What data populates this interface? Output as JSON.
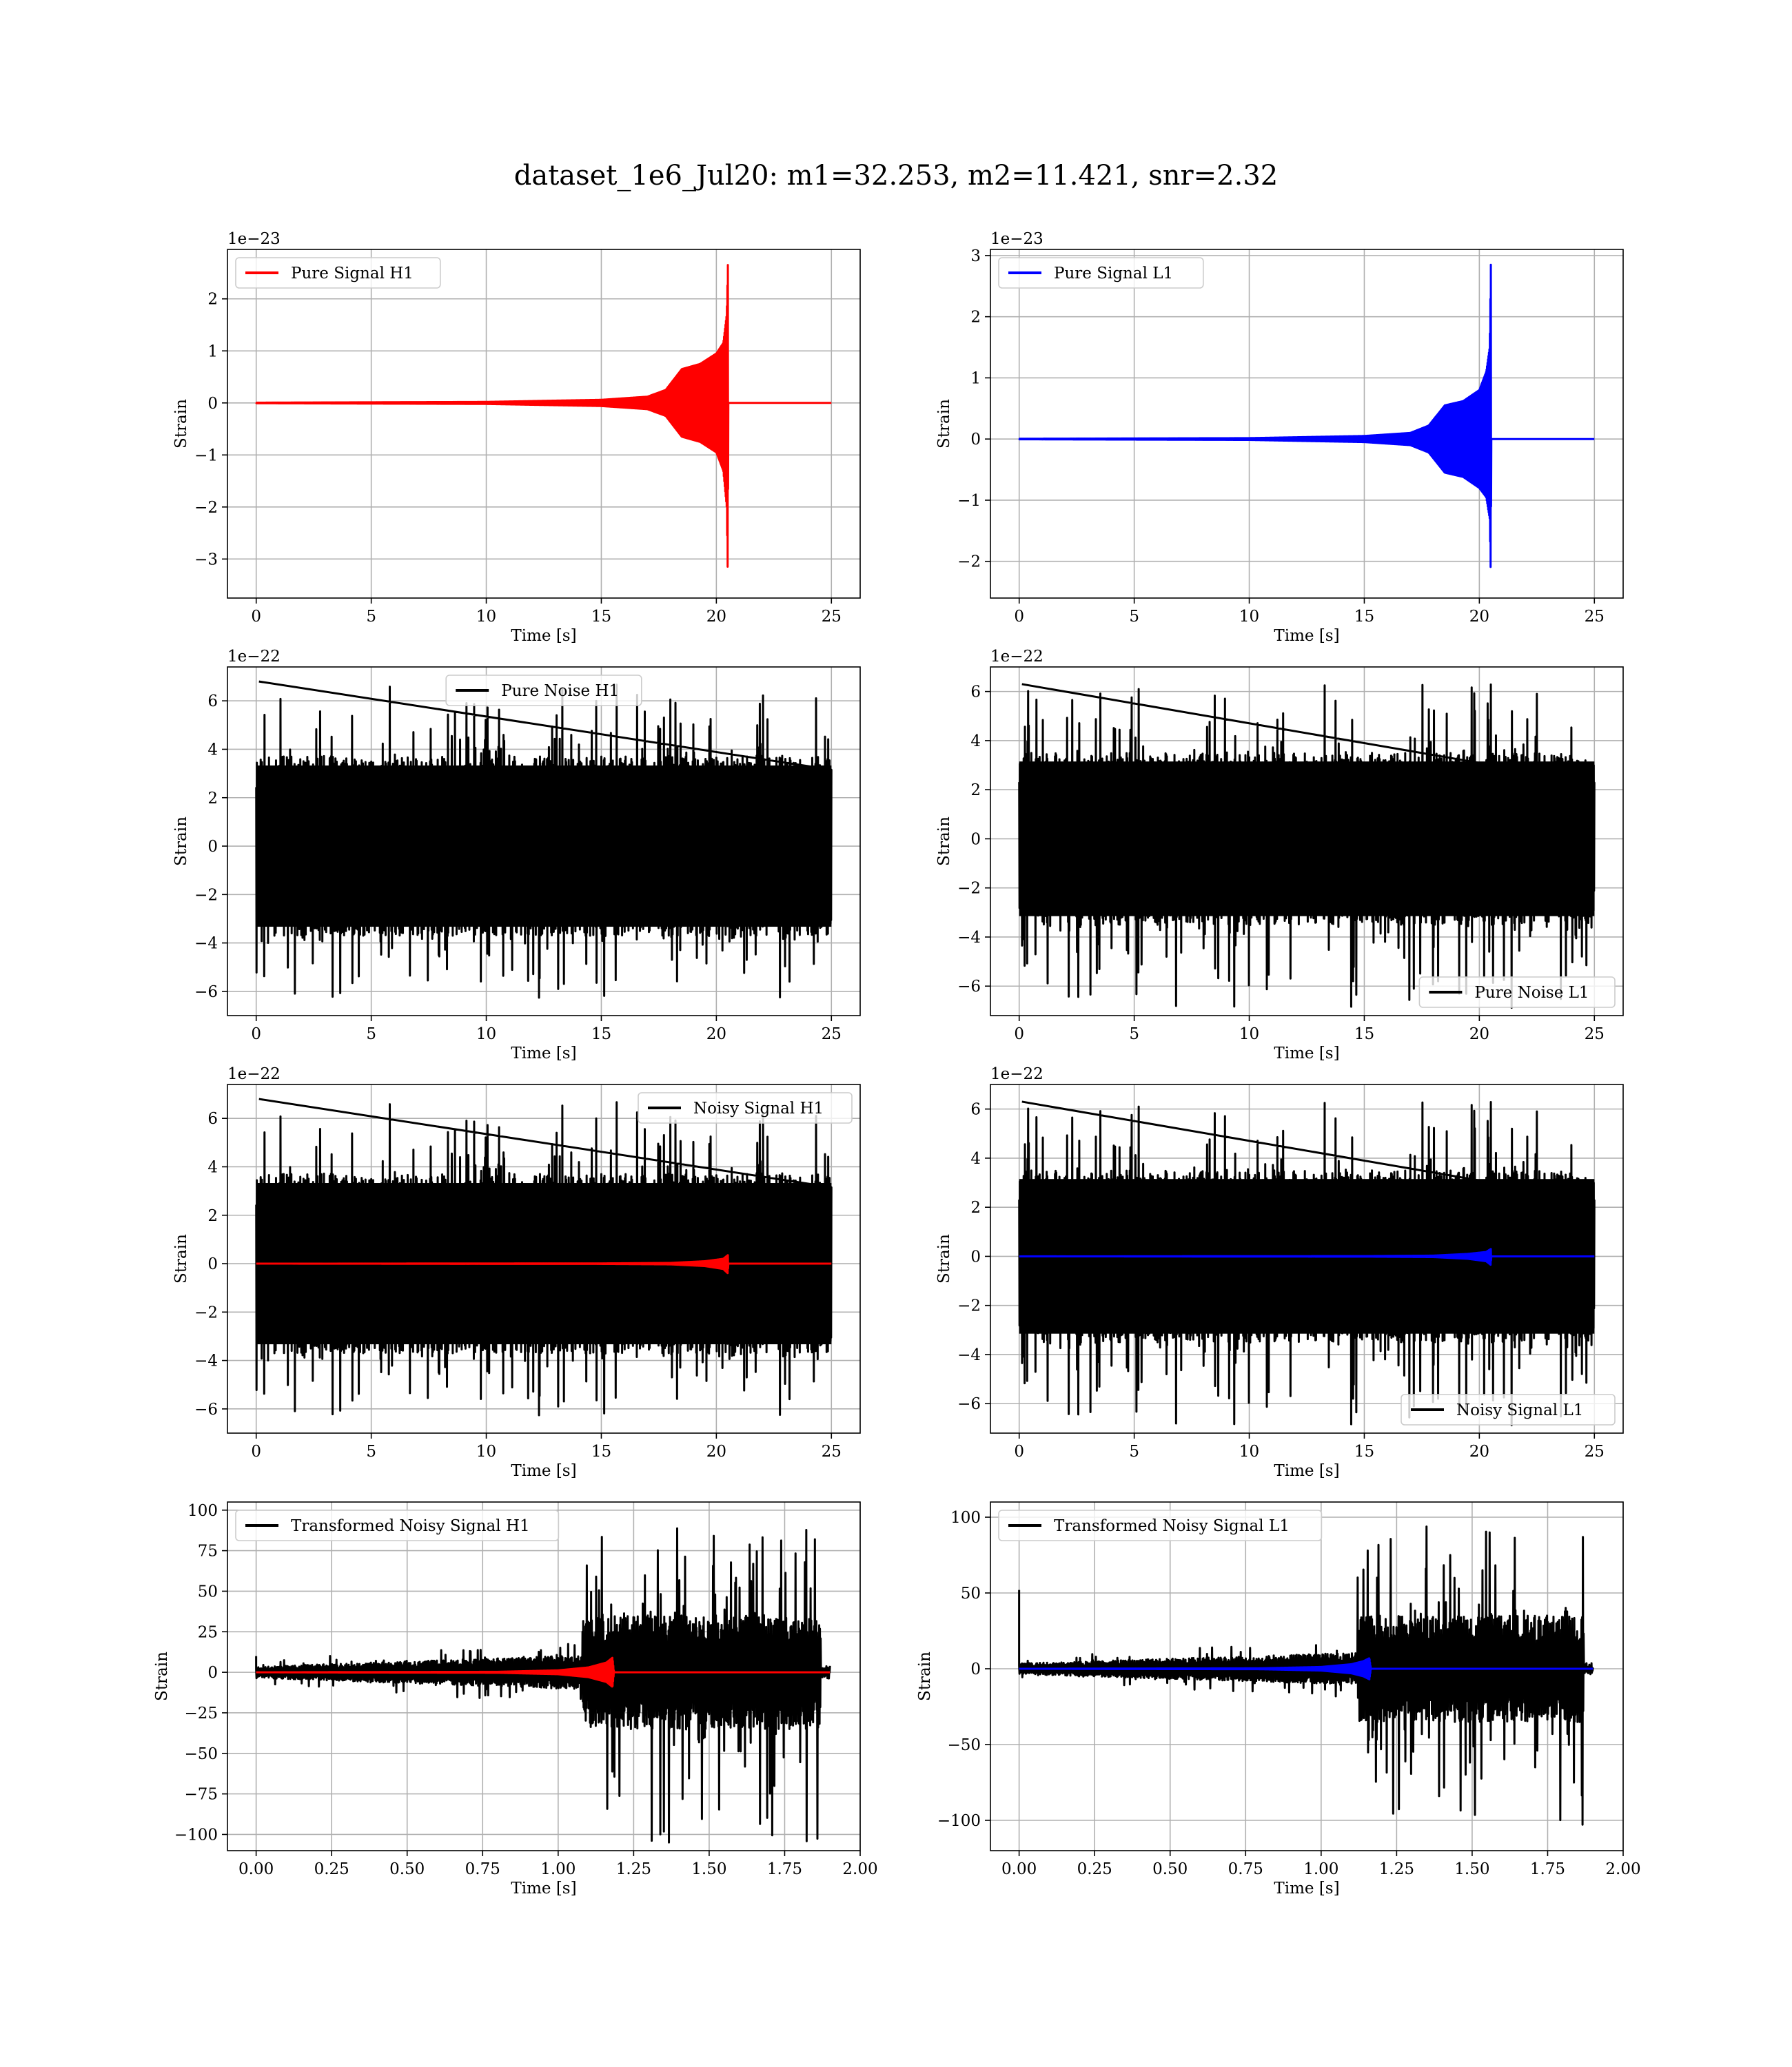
{
  "figure": {
    "suptitle": "dataset_1e6_Jul20: m1=32.253, m2=11.421, snr=2.32"
  },
  "chart_data": [
    {
      "type": "line",
      "id": "pure-signal-h1",
      "xlabel": "Time [s]",
      "ylabel": "Strain",
      "offset_text": "1e−23",
      "xlim": [
        -1.25,
        26.25
      ],
      "ylim": [
        -3.75,
        2.95
      ],
      "xticks": [
        0,
        5,
        10,
        15,
        20,
        25
      ],
      "xtick_labels": [
        "0",
        "5",
        "10",
        "15",
        "20",
        "25"
      ],
      "yticks": [
        -3,
        -2,
        -1,
        0,
        1,
        2
      ],
      "ytick_labels": [
        "−3",
        "−2",
        "−1",
        "0",
        "1",
        "2"
      ],
      "legend_loc": "upper left",
      "grid": true,
      "series": [
        {
          "name": "Pure Signal H1",
          "color": "#ff0000",
          "style": "chirp",
          "x_range": [
            0,
            25
          ],
          "merger_time": 20.5,
          "envelope": {
            "x": [
              0,
              10,
              15,
              17,
              17.8,
              18.5,
              19.3,
              20.0,
              20.3,
              20.45,
              20.5,
              20.52
            ],
            "y": [
              0.005,
              0.02,
              0.06,
              0.12,
              0.25,
              0.65,
              0.75,
              0.95,
              1.15,
              1.7,
              2.65,
              0
            ]
          },
          "envelope_lower": {
            "x": [
              0,
              10,
              15,
              17,
              17.8,
              18.5,
              19.3,
              20.0,
              20.3,
              20.45,
              20.5,
              20.52
            ],
            "y": [
              0.005,
              0.02,
              0.06,
              0.12,
              0.25,
              0.65,
              0.75,
              0.95,
              1.3,
              2.0,
              3.45,
              0
            ]
          }
        }
      ]
    },
    {
      "type": "line",
      "id": "pure-signal-l1",
      "xlabel": "Time [s]",
      "ylabel": "Strain",
      "offset_text": "1e−23",
      "xlim": [
        -1.25,
        26.25
      ],
      "ylim": [
        -2.6,
        3.1
      ],
      "xticks": [
        0,
        5,
        10,
        15,
        20,
        25
      ],
      "xtick_labels": [
        "0",
        "5",
        "10",
        "15",
        "20",
        "25"
      ],
      "yticks": [
        -2,
        -1,
        0,
        1,
        2,
        3
      ],
      "ytick_labels": [
        "−2",
        "−1",
        "0",
        "1",
        "2",
        "3"
      ],
      "legend_loc": "upper left",
      "grid": true,
      "series": [
        {
          "name": "Pure Signal L1",
          "color": "#0000ff",
          "style": "chirp",
          "x_range": [
            0,
            25
          ],
          "merger_time": 20.5,
          "envelope": {
            "x": [
              0,
              10,
              15,
              17,
              17.8,
              18.5,
              19.3,
              20.0,
              20.3,
              20.45,
              20.5,
              20.52
            ],
            "y": [
              0.004,
              0.015,
              0.05,
              0.1,
              0.22,
              0.55,
              0.62,
              0.8,
              1.1,
              1.5,
              2.85,
              0
            ]
          },
          "envelope_lower": {
            "x": [
              0,
              10,
              15,
              17,
              17.8,
              18.5,
              19.3,
              20.0,
              20.3,
              20.45,
              20.5,
              20.52
            ],
            "y": [
              0.004,
              0.015,
              0.05,
              0.1,
              0.22,
              0.55,
              0.62,
              0.8,
              0.95,
              1.3,
              2.3,
              0
            ]
          }
        }
      ]
    },
    {
      "type": "line",
      "id": "pure-noise-h1",
      "xlabel": "Time [s]",
      "ylabel": "Strain",
      "offset_text": "1e−22",
      "xlim": [
        -1.25,
        26.25
      ],
      "ylim": [
        -7.0,
        7.4
      ],
      "xticks": [
        0,
        5,
        10,
        15,
        20,
        25
      ],
      "xtick_labels": [
        "0",
        "5",
        "10",
        "15",
        "20",
        "25"
      ],
      "yticks": [
        -6,
        -4,
        -2,
        0,
        2,
        4,
        6
      ],
      "ytick_labels": [
        "−6",
        "−4",
        "−2",
        "0",
        "2",
        "4",
        "6"
      ],
      "legend_loc": "upper center",
      "grid": true,
      "series": [
        {
          "name": "Pure Noise H1",
          "color": "#000000",
          "style": "noise",
          "x_range": [
            0,
            25
          ],
          "band": [
            -3.7,
            3.7
          ],
          "peak_max": 6.8,
          "peak_min": -6.3,
          "seed": 11
        }
      ]
    },
    {
      "type": "line",
      "id": "pure-noise-l1",
      "xlabel": "Time [s]",
      "ylabel": "Strain",
      "offset_text": "1e−22",
      "xlim": [
        -1.25,
        26.25
      ],
      "ylim": [
        -7.2,
        7.0
      ],
      "xticks": [
        0,
        5,
        10,
        15,
        20,
        25
      ],
      "xtick_labels": [
        "0",
        "5",
        "10",
        "15",
        "20",
        "25"
      ],
      "yticks": [
        -6,
        -4,
        -2,
        0,
        2,
        4,
        6
      ],
      "ytick_labels": [
        "−6",
        "−4",
        "−2",
        "0",
        "2",
        "4",
        "6"
      ],
      "legend_loc": "lower right",
      "grid": true,
      "series": [
        {
          "name": "Pure Noise L1",
          "color": "#000000",
          "style": "noise",
          "x_range": [
            0,
            25
          ],
          "band": [
            -3.5,
            3.5
          ],
          "peak_max": 6.3,
          "peak_min": -6.9,
          "seed": 23
        }
      ]
    },
    {
      "type": "line",
      "id": "noisy-signal-h1",
      "xlabel": "Time [s]",
      "ylabel": "Strain",
      "offset_text": "1e−22",
      "xlim": [
        -1.25,
        26.25
      ],
      "ylim": [
        -7.0,
        7.4
      ],
      "xticks": [
        0,
        5,
        10,
        15,
        20,
        25
      ],
      "xtick_labels": [
        "0",
        "5",
        "10",
        "15",
        "20",
        "25"
      ],
      "yticks": [
        -6,
        -4,
        -2,
        0,
        2,
        4,
        6
      ],
      "ytick_labels": [
        "−6",
        "−4",
        "−2",
        "0",
        "2",
        "4",
        "6"
      ],
      "legend_loc": "upper right",
      "grid": true,
      "series": [
        {
          "name": "Noisy Signal H1",
          "color": "#000000",
          "style": "noise",
          "x_range": [
            0,
            25
          ],
          "band": [
            -3.7,
            3.7
          ],
          "peak_max": 6.8,
          "peak_min": -6.3,
          "seed": 11
        },
        {
          "name": "",
          "color": "#ff0000",
          "style": "chirp",
          "x_range": [
            0,
            25
          ],
          "merger_time": 20.5,
          "envelope": {
            "x": [
              0,
              15,
              18,
              19.5,
              20.3,
              20.5,
              20.52
            ],
            "y": [
              0.0,
              0.01,
              0.03,
              0.1,
              0.2,
              0.35,
              0
            ]
          },
          "envelope_lower": {
            "x": [
              0,
              15,
              18,
              19.5,
              20.3,
              20.5,
              20.52
            ],
            "y": [
              0.0,
              0.01,
              0.03,
              0.1,
              0.22,
              0.4,
              0
            ]
          }
        }
      ]
    },
    {
      "type": "line",
      "id": "noisy-signal-l1",
      "xlabel": "Time [s]",
      "ylabel": "Strain",
      "offset_text": "1e−22",
      "xlim": [
        -1.25,
        26.25
      ],
      "ylim": [
        -7.2,
        7.0
      ],
      "xticks": [
        0,
        5,
        10,
        15,
        20,
        25
      ],
      "xtick_labels": [
        "0",
        "5",
        "10",
        "15",
        "20",
        "25"
      ],
      "yticks": [
        -6,
        -4,
        -2,
        0,
        2,
        4,
        6
      ],
      "ytick_labels": [
        "−6",
        "−4",
        "−2",
        "0",
        "2",
        "4",
        "6"
      ],
      "legend_loc": "lower right",
      "grid": true,
      "series": [
        {
          "name": "Noisy Signal L1",
          "color": "#000000",
          "style": "noise",
          "x_range": [
            0,
            25
          ],
          "band": [
            -3.5,
            3.5
          ],
          "peak_max": 6.3,
          "peak_min": -6.9,
          "seed": 23
        },
        {
          "name": "",
          "color": "#0000ff",
          "style": "chirp",
          "x_range": [
            0,
            25
          ],
          "merger_time": 20.5,
          "envelope": {
            "x": [
              0,
              15,
              18,
              19.5,
              20.3,
              20.5,
              20.52
            ],
            "y": [
              0.0,
              0.01,
              0.03,
              0.1,
              0.18,
              0.3,
              0
            ]
          },
          "envelope_lower": {
            "x": [
              0,
              15,
              18,
              19.5,
              20.3,
              20.5,
              20.52
            ],
            "y": [
              0.0,
              0.01,
              0.03,
              0.1,
              0.2,
              0.35,
              0
            ]
          }
        }
      ]
    },
    {
      "type": "line",
      "id": "transformed-noisy-signal-h1",
      "xlabel": "Time [s]",
      "ylabel": "Strain",
      "offset_text": "",
      "xlim": [
        -0.095,
        2.0
      ],
      "ylim": [
        -110,
        105
      ],
      "xticks": [
        0.0,
        0.25,
        0.5,
        0.75,
        1.0,
        1.25,
        1.5,
        1.75,
        2.0
      ],
      "xtick_labels": [
        "0.00",
        "0.25",
        "0.50",
        "0.75",
        "1.00",
        "1.25",
        "1.50",
        "1.75",
        "2.00"
      ],
      "yticks": [
        -100,
        -75,
        -50,
        -25,
        0,
        25,
        50,
        75,
        100
      ],
      "ytick_labels": [
        "−100",
        "−75",
        "−50",
        "−25",
        "0",
        "25",
        "50",
        "75",
        "100"
      ],
      "legend_loc": "upper left",
      "grid": true,
      "series": [
        {
          "name": "Transformed Noisy Signal H1",
          "color": "#000000",
          "style": "whitened",
          "x_range": [
            0,
            1.9
          ],
          "band_before": 5,
          "band_after": 32,
          "jump_time": 1.08,
          "end_time": 1.87,
          "peak_max": 95,
          "peak_min": -105,
          "start_spike": 10,
          "seed": 37
        },
        {
          "name": "",
          "color": "#ff0000",
          "style": "chirp",
          "x_range": [
            0,
            1.9
          ],
          "merger_time": 1.18,
          "envelope": {
            "x": [
              0,
              0.8,
              1.0,
              1.1,
              1.16,
              1.18,
              1.185
            ],
            "y": [
              0.0,
              0.3,
              1.2,
              3.0,
              6.0,
              9.0,
              0
            ]
          },
          "envelope_lower": {
            "x": [
              0,
              0.8,
              1.0,
              1.1,
              1.16,
              1.18,
              1.185
            ],
            "y": [
              0.0,
              0.3,
              1.2,
              3.0,
              6.0,
              9.0,
              0
            ]
          }
        }
      ]
    },
    {
      "type": "line",
      "id": "transformed-noisy-signal-l1",
      "xlabel": "Time [s]",
      "ylabel": "Strain",
      "offset_text": "",
      "xlim": [
        -0.095,
        2.0
      ],
      "ylim": [
        -120,
        110
      ],
      "xticks": [
        0.0,
        0.25,
        0.5,
        0.75,
        1.0,
        1.25,
        1.5,
        1.75,
        2.0
      ],
      "xtick_labels": [
        "0.00",
        "0.25",
        "0.50",
        "0.75",
        "1.00",
        "1.25",
        "1.50",
        "1.75",
        "2.00"
      ],
      "yticks": [
        -100,
        -50,
        0,
        50,
        100
      ],
      "ytick_labels": [
        "−100",
        "−50",
        "0",
        "50",
        "100"
      ],
      "legend_loc": "upper left",
      "grid": true,
      "series": [
        {
          "name": "Transformed Noisy Signal L1",
          "color": "#000000",
          "style": "whitened",
          "x_range": [
            0,
            1.9
          ],
          "band_before": 5,
          "band_after": 32,
          "jump_time": 1.12,
          "end_time": 1.87,
          "peak_max": 100,
          "peak_min": -110,
          "start_spike": 52,
          "seed": 41
        },
        {
          "name": "",
          "color": "#0000ff",
          "style": "chirp",
          "x_range": [
            0,
            1.9
          ],
          "merger_time": 1.16,
          "envelope": {
            "x": [
              0,
              0.8,
              1.0,
              1.1,
              1.14,
              1.16,
              1.165
            ],
            "y": [
              0.0,
              0.3,
              1.2,
              3.0,
              5.0,
              7.0,
              0
            ]
          },
          "envelope_lower": {
            "x": [
              0,
              0.8,
              1.0,
              1.1,
              1.14,
              1.16,
              1.165
            ],
            "y": [
              0.0,
              0.3,
              1.2,
              3.0,
              5.0,
              7.0,
              0
            ]
          }
        }
      ]
    }
  ]
}
